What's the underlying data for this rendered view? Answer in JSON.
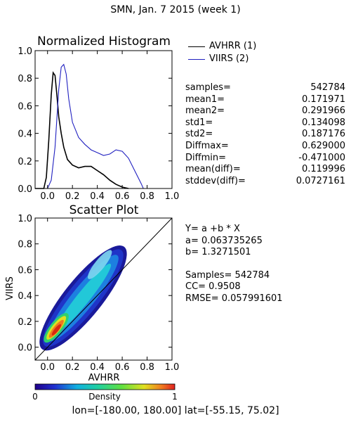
{
  "suptitle": "SMN,  Jan. 7 2015 (week 1)",
  "footer": "lon=[-180.00, 180.00] lat=[-55.15, 75.02]",
  "legend": [
    {
      "label": "AVHRR (1)",
      "color": "#000000"
    },
    {
      "label": "VIIRS (2)",
      "color": "#2020c0"
    }
  ],
  "stats": [
    {
      "label": "samples=",
      "value": "542784"
    },
    {
      "label": "mean1=",
      "value": "0.171971"
    },
    {
      "label": "mean2=",
      "value": "0.291966"
    },
    {
      "label": "std1=",
      "value": "0.134098"
    },
    {
      "label": "std2=",
      "value": "0.187176"
    },
    {
      "label": "Diffmax=",
      "value": "0.629000"
    },
    {
      "label": "Diffmin=",
      "value": "-0.471000"
    },
    {
      "label": "mean(diff)=",
      "value": "0.119996"
    },
    {
      "label": "stddev(diff)=",
      "value": "0.0727161"
    }
  ],
  "fit": {
    "equation": "Y= a +b * X",
    "a": "a= 0.063735265",
    "b": "b= 1.3271501",
    "samples": "Samples= 542784",
    "cc": "CC=  0.9508",
    "rmse": "RMSE= 0.057991601"
  },
  "chart_data": [
    {
      "type": "line",
      "title": "Normalized Histogram",
      "xlim": [
        -0.1,
        1.0
      ],
      "ylim": [
        0.0,
        1.0
      ],
      "xticks": [
        "0.0",
        "0.2",
        "0.4",
        "0.6",
        "0.8",
        "1.0"
      ],
      "yticks": [
        "0.0",
        "0.2",
        "0.4",
        "0.6",
        "0.8",
        "1.0"
      ],
      "series": [
        {
          "name": "AVHRR (1)",
          "color": "#000000",
          "x": [
            -0.1,
            -0.03,
            -0.01,
            0.01,
            0.03,
            0.045,
            0.06,
            0.075,
            0.09,
            0.11,
            0.13,
            0.16,
            0.2,
            0.25,
            0.3,
            0.35,
            0.4,
            0.45,
            0.5,
            0.55,
            0.6,
            0.65
          ],
          "y": [
            0.0,
            0.0,
            0.08,
            0.35,
            0.68,
            0.84,
            0.82,
            0.68,
            0.52,
            0.4,
            0.3,
            0.21,
            0.17,
            0.15,
            0.16,
            0.16,
            0.13,
            0.1,
            0.06,
            0.03,
            0.01,
            0.0
          ]
        },
        {
          "name": "VIIRS (2)",
          "color": "#2020c0",
          "x": [
            -0.1,
            0.0,
            0.03,
            0.06,
            0.09,
            0.11,
            0.13,
            0.15,
            0.17,
            0.2,
            0.25,
            0.3,
            0.35,
            0.4,
            0.45,
            0.5,
            0.55,
            0.6,
            0.65,
            0.7,
            0.75,
            0.77,
            0.8
          ],
          "y": [
            0.0,
            0.0,
            0.06,
            0.3,
            0.72,
            0.88,
            0.9,
            0.83,
            0.65,
            0.48,
            0.37,
            0.32,
            0.28,
            0.26,
            0.24,
            0.25,
            0.28,
            0.27,
            0.22,
            0.13,
            0.04,
            0.0,
            0.0
          ]
        }
      ]
    },
    {
      "type": "scatter",
      "title": "Scatter Plot",
      "xlabel": "AVHRR",
      "ylabel": "VIIRS",
      "xlim": [
        -0.1,
        1.0
      ],
      "ylim": [
        -0.1,
        1.0
      ],
      "xticks": [
        "0.0",
        "0.2",
        "0.4",
        "0.6",
        "0.8",
        "1.0"
      ],
      "yticks": [
        "0.0",
        "0.2",
        "0.4",
        "0.6",
        "0.8",
        "1.0"
      ],
      "reference_line": "y = x",
      "density_ridge": {
        "x": [
          0.0,
          0.05,
          0.1,
          0.15,
          0.2,
          0.3,
          0.4,
          0.5,
          0.55
        ],
        "y": [
          0.04,
          0.1,
          0.17,
          0.26,
          0.34,
          0.46,
          0.58,
          0.67,
          0.7
        ]
      },
      "colorbar": {
        "label": "Density",
        "min": "0",
        "max": "1"
      }
    }
  ]
}
